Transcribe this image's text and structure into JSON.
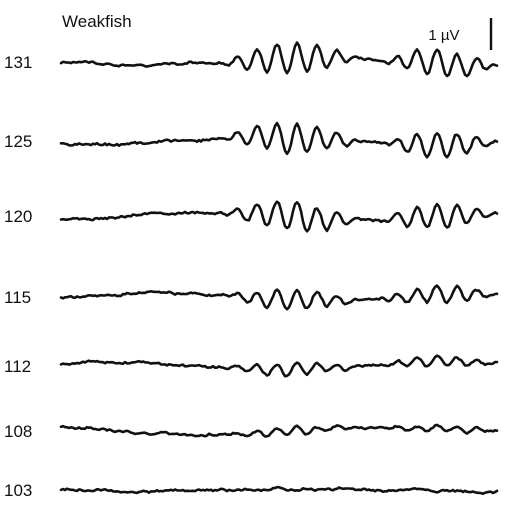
{
  "chart_data": {
    "type": "line",
    "title": "Weakfish",
    "scale_bar_label": "1 µV",
    "series": [
      {
        "name": "131",
        "burst_amplitude": 1.0,
        "burst_cycles": 6
      },
      {
        "name": "125",
        "burst_amplitude": 0.95,
        "burst_cycles": 5
      },
      {
        "name": "120",
        "burst_amplitude": 0.95,
        "burst_cycles": 6
      },
      {
        "name": "115",
        "burst_amplitude": 0.65,
        "burst_cycles": 5
      },
      {
        "name": "112",
        "burst_amplitude": 0.4,
        "burst_cycles": 5
      },
      {
        "name": "108",
        "burst_amplitude": 0.25,
        "burst_cycles": 5
      },
      {
        "name": "103",
        "burst_amplitude": 0.03,
        "burst_cycles": 0
      }
    ]
  }
}
